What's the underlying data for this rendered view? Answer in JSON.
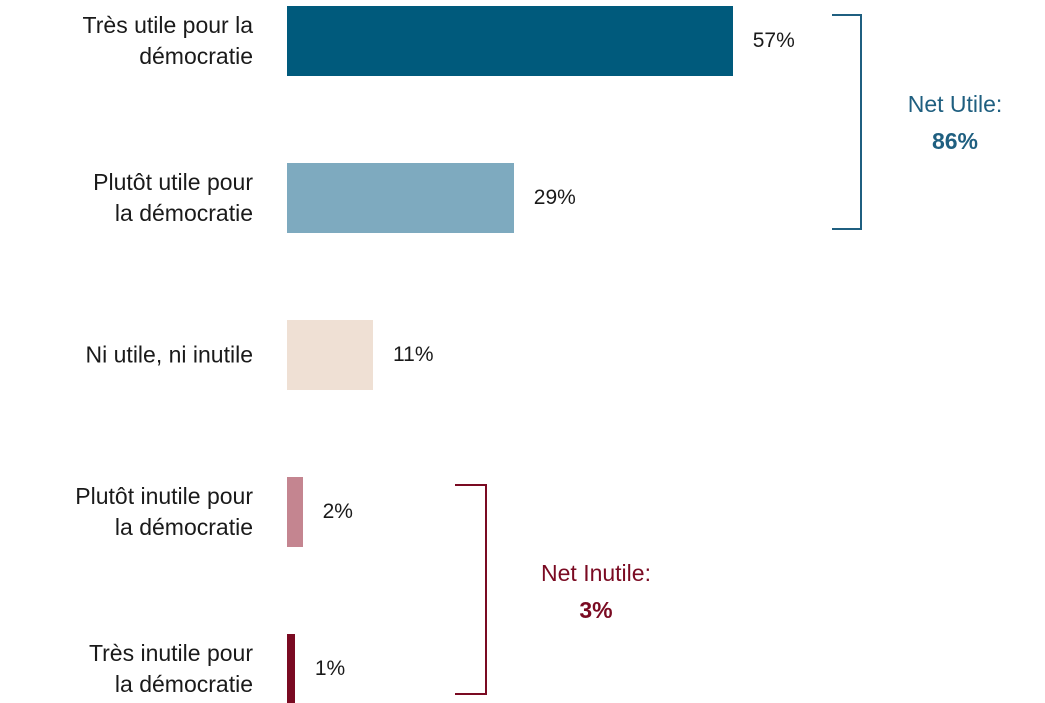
{
  "chart_data": {
    "type": "bar",
    "orientation": "horizontal",
    "categories": [
      "Très utile pour la\ndémocratie",
      "Plutôt utile pour\nla démocratie",
      "Ni utile, ni inutile",
      "Plutôt inutile pour\nla démocratie",
      "Très inutile pour\nla démocratie"
    ],
    "values": [
      57,
      29,
      11,
      2,
      1
    ],
    "value_labels": [
      "57%",
      "29%",
      "11%",
      "2%",
      "1%"
    ],
    "colors": [
      "#005a7c",
      "#7eaabf",
      "#efe0d4",
      "#c48590",
      "#7a0a22"
    ],
    "annotations": [
      {
        "label": "Net Utile:",
        "value": "86%",
        "color": "#1f5f80"
      },
      {
        "label": "Net Inutile:",
        "value": "3%",
        "color": "#7a0a22"
      }
    ]
  }
}
